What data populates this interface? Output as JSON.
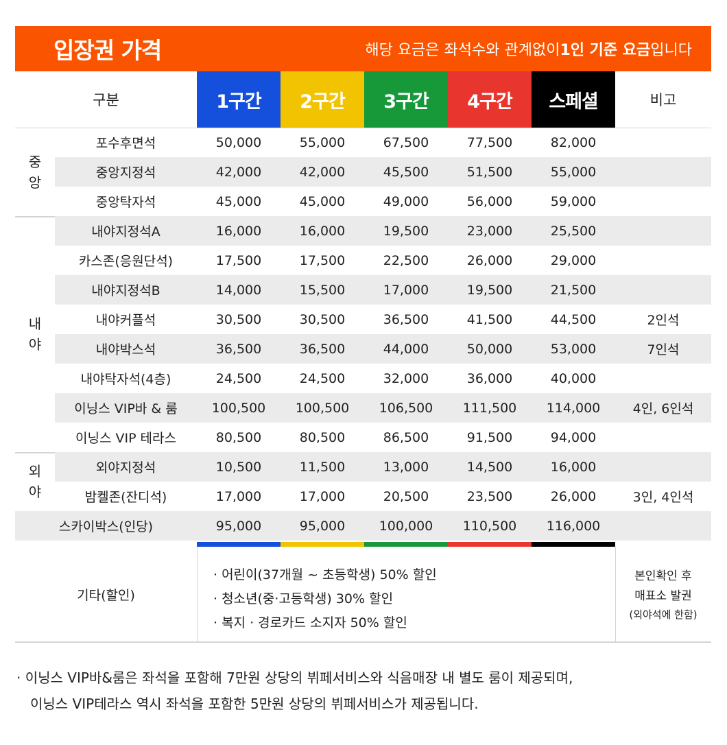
{
  "header": {
    "title": "입장권 가격",
    "subtitle": [
      "해당 요금은 좌석수와 관계없이 ",
      "1인 기준 요금",
      "입니다"
    ]
  },
  "table": {
    "columns": [
      "구분",
      "1구간",
      "2구간",
      "3구간",
      "4구간",
      "스페셜",
      "비고"
    ],
    "groups": [
      {
        "label": "중앙",
        "rows": [
          {
            "seat": "포수후면석",
            "prices": [
              "50,000",
              "55,000",
              "67,500",
              "77,500",
              "82,000"
            ]
          },
          {
            "seat": "중앙지정석",
            "prices": [
              "42,000",
              "42,000",
              "45,500",
              "51,500",
              "55,000"
            ]
          },
          {
            "seat": "중앙탁자석",
            "prices": [
              "45,000",
              "45,000",
              "49,000",
              "56,000",
              "59,000"
            ]
          }
        ]
      },
      {
        "label": "내야",
        "rows": [
          {
            "seat": "내야지정석A",
            "prices": [
              "16,000",
              "16,000",
              "19,500",
              "23,000",
              "25,500"
            ]
          },
          {
            "seat": "카스존(응원단석)",
            "prices": [
              "17,500",
              "17,500",
              "22,500",
              "26,000",
              "29,000"
            ]
          },
          {
            "seat": "내야지정석B",
            "prices": [
              "14,000",
              "15,500",
              "17,000",
              "19,500",
              "21,500"
            ]
          },
          {
            "seat": "내야커플석",
            "prices": [
              "30,500",
              "30,500",
              "36,500",
              "41,500",
              "44,500"
            ],
            "note": "2인석"
          },
          {
            "seat": "내야박스석",
            "prices": [
              "36,500",
              "36,500",
              "44,000",
              "50,000",
              "53,000"
            ],
            "note": "7인석"
          },
          {
            "seat": "내야탁자석(4층)",
            "prices": [
              "24,500",
              "24,500",
              "32,000",
              "36,000",
              "40,000"
            ]
          },
          {
            "seat": "이닝스 VIP바 & 룸",
            "prices": [
              "100,500",
              "100,500",
              "106,500",
              "111,500",
              "114,000"
            ],
            "note": "4인, 6인석"
          },
          {
            "seat": "이닝스 VIP 테라스",
            "prices": [
              "80,500",
              "80,500",
              "86,500",
              "91,500",
              "94,000"
            ]
          }
        ]
      },
      {
        "label": "외야",
        "rows": [
          {
            "seat": "외야지정석",
            "prices": [
              "10,500",
              "11,500",
              "13,000",
              "14,500",
              "16,000"
            ]
          },
          {
            "seat": "밤켈존(잔디석)",
            "prices": [
              "17,000",
              "17,000",
              "20,500",
              "23,500",
              "26,000"
            ],
            "note": "3인, 4인석"
          }
        ]
      }
    ],
    "skybox": {
      "seat": "스카이박스(인당)",
      "prices": [
        "95,000",
        "95,000",
        "100,000",
        "110,500",
        "116,000"
      ]
    },
    "discount": {
      "label": "기타(할인)",
      "items": [
        "· 어린이(37개월 ~ 초등학생) 50% 할인",
        "· 청소년(중·고등학생) 30% 할인",
        "· 복지 · 경로카드 소지자 50% 할인"
      ],
      "note": [
        "본인확인 후",
        "매표소 발권",
        "(외야석에 한함)"
      ]
    }
  },
  "footnote": [
    "· 이닝스 VIP바&룸은 좌석을 포함해 7만원 상당의 뷔페서비스와 식음매장 내 별도 룸이 제공되며,",
    "이닝스 VIP테라스 역시 좌석을 포함한 5만원 상당의 뷔페서비스가 제공됩니다."
  ]
}
